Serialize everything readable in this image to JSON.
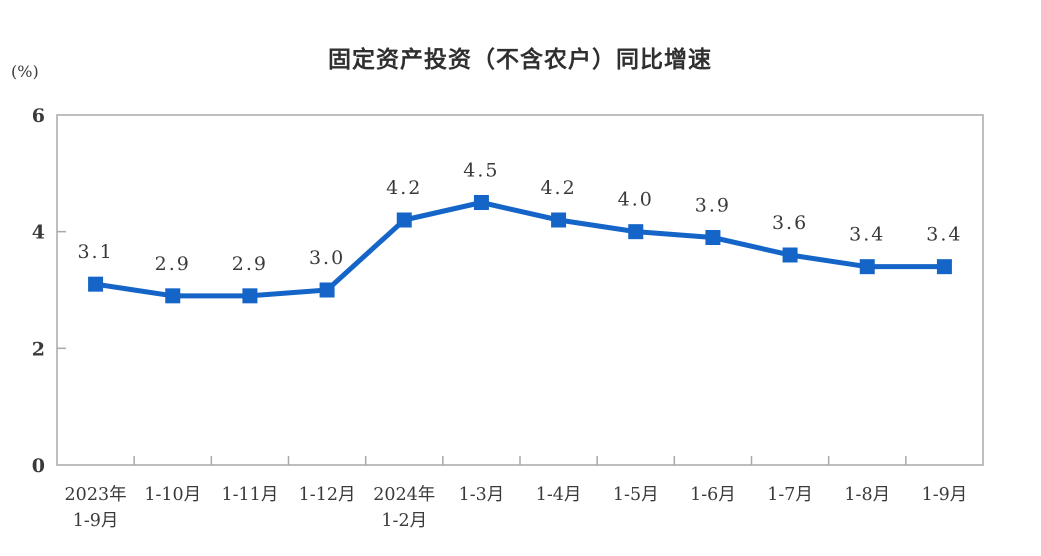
{
  "chart_data": {
    "type": "line",
    "title": "固定资产投资（不含农户）同比增速",
    "unit_label": "(%)",
    "categories": [
      [
        "2023年",
        "1-9月"
      ],
      [
        "1-10月"
      ],
      [
        "1-11月"
      ],
      [
        "1-12月"
      ],
      [
        "2024年",
        "1-2月"
      ],
      [
        "1-3月"
      ],
      [
        "1-4月"
      ],
      [
        "1-5月"
      ],
      [
        "1-6月"
      ],
      [
        "1-7月"
      ],
      [
        "1-8月"
      ],
      [
        "1-9月"
      ]
    ],
    "values": [
      3.1,
      2.9,
      2.9,
      3.0,
      4.2,
      4.5,
      4.2,
      4.0,
      3.9,
      3.6,
      3.4,
      3.4
    ],
    "point_labels": [
      "3.1",
      "2.9",
      "2.9",
      "3.0",
      "4.2",
      "4.5",
      "4.2",
      "4.0",
      "3.9",
      "3.6",
      "3.4",
      "3.4"
    ],
    "ylim": [
      0,
      6
    ],
    "yticks": [
      0,
      2,
      4,
      6
    ],
    "grid": "off",
    "legend": "none",
    "marker_shape": "square",
    "colors": {
      "line": "#1565C8",
      "marker": "#1565C8",
      "plot_border": "#a9a9a9",
      "text": "#3a3a3a"
    }
  }
}
